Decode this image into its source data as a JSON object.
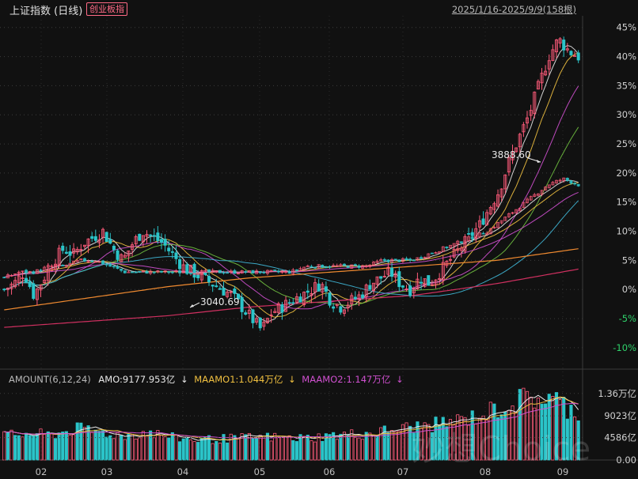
{
  "header": {
    "title": "上证指数 (日线)",
    "compare_badge": "创业板指",
    "range_text": "2025/1/16-2025/9/9(158根)"
  },
  "volume_legend": {
    "name": "AMOUNT(6,12,24)",
    "amo": "AMO:9177.953亿",
    "amo_arrow": "↓",
    "maamo1": "MAAMO1:1.044万亿",
    "maamo1_arrow": "↓",
    "maamo2": "MAAMO2:1.147万亿",
    "maamo2_arrow": "↓"
  },
  "annotations": {
    "high_label": "3888.60",
    "low_label": "3040.69"
  },
  "watermark": "妙想Choice",
  "colors": {
    "background": "#111111",
    "up": "#ff5b7a",
    "down": "#2bc4c9",
    "positive_axis": "#d0d0d0",
    "negative_axis": "#2fd36b",
    "ma_white": "#e8e8e8",
    "ma_yellow": "#f0c040",
    "ma_magenta": "#d050d0",
    "ma_green": "#70c040",
    "ma_cyan": "#40b8d8",
    "ma_orange": "#f08a30",
    "ma_crimson": "#d03060"
  },
  "chart_data": [
    {
      "type": "candlestick",
      "title": "上证指数 (日线)",
      "y_axis": "percent",
      "ylim": [
        -13,
        47
      ],
      "ytick_labels": [
        "45%",
        "40%",
        "35%",
        "30%",
        "25%",
        "20%",
        "15%",
        "10%",
        "5%",
        "0%",
        "-5%",
        "-10%"
      ],
      "ytick_values": [
        45,
        40,
        35,
        30,
        25,
        20,
        15,
        10,
        5,
        0,
        -5,
        -10
      ],
      "x_tick_labels": [
        "02",
        "03",
        "04",
        "05",
        "06",
        "07",
        "08",
        "09"
      ],
      "key_points": {
        "high": 3888.6,
        "low": 3040.69
      },
      "series": [
        {
          "name": "创业板指",
          "approx_pct": [
            0,
            1,
            3,
            -1,
            2,
            5,
            7,
            6,
            8,
            9,
            10,
            7,
            5,
            8,
            10,
            9,
            8,
            6,
            4,
            3,
            2,
            1,
            0,
            -1,
            -3,
            -5,
            -7,
            -4,
            -3,
            -2,
            -1,
            0,
            1,
            -2,
            -3,
            -2,
            -1,
            1,
            2,
            3,
            1,
            0,
            2,
            1,
            3,
            5,
            7,
            9,
            11,
            14,
            17,
            22,
            26,
            30,
            35,
            40,
            43,
            41,
            40
          ]
        },
        {
          "name": "上证指数",
          "approx_pct": [
            2,
            3,
            3,
            4,
            4,
            5,
            5,
            4,
            3,
            3,
            3,
            3,
            3,
            3,
            3,
            3,
            3,
            3,
            3,
            3,
            4,
            4,
            4,
            4,
            4,
            5,
            5,
            5,
            6,
            7,
            8,
            9,
            10,
            12,
            14,
            16,
            18,
            19,
            18
          ]
        }
      ]
    },
    {
      "type": "bar",
      "title": "AMOUNT(6,12,24)",
      "ytick_labels": [
        "1.36万亿",
        "9023亿",
        "4586亿",
        "0.00"
      ],
      "ytick_values": [
        13600,
        9023,
        4586,
        0
      ],
      "unit": "亿",
      "last_value": 9177.953,
      "ma_last": {
        "MAAMO1": 10440,
        "MAAMO2": 11470
      }
    }
  ]
}
